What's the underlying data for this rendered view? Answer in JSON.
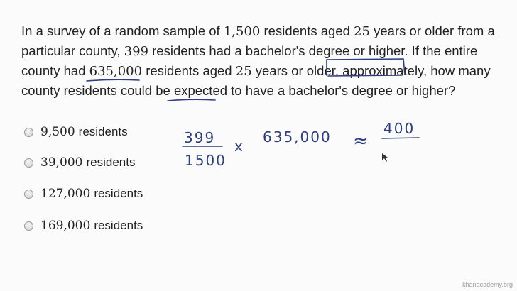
{
  "question": {
    "p1": "In a survey of a random sample of ",
    "n1": "1,500",
    "p2": " residents aged ",
    "n2": "25",
    "p3": " years or older from a particular county, ",
    "n3": "399",
    "p4": " residents had a bachelor's degree or higher. If the entire county had ",
    "n4": "635,000",
    "p5": " residents aged ",
    "n5": "25",
    "p6": " years or older, ",
    "w1": "approximately",
    "p7": ", how many county residents could be ",
    "w2": "expected",
    "p8": " to have a bachelor's degree or higher?"
  },
  "options": [
    {
      "value": "9,500",
      "unit": "residents"
    },
    {
      "value": "39,000",
      "unit": "residents"
    },
    {
      "value": "127,000",
      "unit": "residents"
    },
    {
      "value": "169,000",
      "unit": "residents"
    }
  ],
  "handwriting": {
    "numerator": "399",
    "denominator": "1500",
    "times": "x",
    "multiplier": "635,000",
    "approx": "≈",
    "result_numerator": "400"
  },
  "ink_color": "#2d3f80",
  "watermark": "khanacademy.org"
}
